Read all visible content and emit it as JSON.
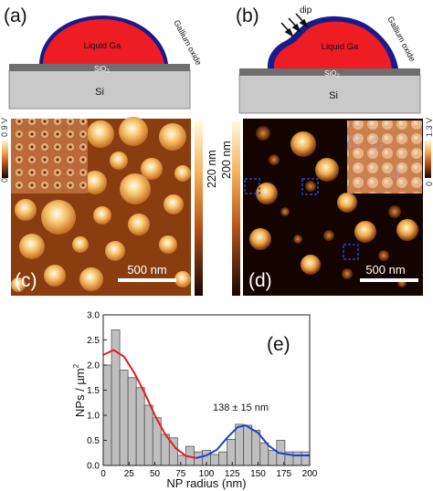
{
  "panel_a": {
    "letter": "(a)",
    "layers": {
      "liquid": "Liquid Ga",
      "oxide": "Gallium oxide",
      "sio2": "SiO",
      "sio2_sub": "2",
      "si": "Si"
    }
  },
  "panel_b": {
    "letter": "(b)",
    "dip": "dip",
    "layers": {
      "liquid": "Liquid Ga",
      "oxide": "Gallium oxide",
      "sio2": "SiO",
      "sio2_sub": "2",
      "si": "Si"
    }
  },
  "panel_c": {
    "letter": "(c)",
    "scale_bar": "500 nm",
    "height_bar": "220 nm",
    "inset_bar_top": "0.9 V",
    "inset_bar_bottom": "0"
  },
  "panel_d": {
    "letter": "(d)",
    "scale_bar": "500 nm",
    "height_bar": "200 nm",
    "inset_bar_top": "1.3 V",
    "inset_bar_bottom": "0"
  },
  "panel_e": {
    "letter": "(e)",
    "annotation": "138 ± 15 nm",
    "xlabel": "NP radius (nm)",
    "ylabel": "NPs / µm",
    "ylabel_sup": "2",
    "x_ticks": [
      "0",
      "25",
      "50",
      "75",
      "100",
      "125",
      "150",
      "175",
      "200"
    ],
    "y_ticks": [
      "0.0",
      "0.5",
      "1.0",
      "1.5",
      "2.0",
      "2.5",
      "3.0"
    ]
  },
  "colors": {
    "gallium": "#ee1c23",
    "oxide": "#1a1a8c",
    "fit_red": "#e8191e",
    "fit_blue": "#1e3fd0",
    "bar": "#bfbfbf"
  },
  "chart_data": {
    "type": "bar",
    "xlabel": "NP radius (nm)",
    "ylabel": "NPs / µm²",
    "xlim": [
      0,
      200
    ],
    "ylim": [
      0,
      3.0
    ],
    "bin_width": 8,
    "x": [
      4,
      12,
      20,
      28,
      36,
      44,
      52,
      60,
      68,
      76,
      84,
      92,
      100,
      108,
      116,
      124,
      132,
      140,
      148,
      156,
      164,
      172,
      180,
      188,
      196
    ],
    "values": [
      2.0,
      2.7,
      1.9,
      1.75,
      1.55,
      1.2,
      0.95,
      0.62,
      0.55,
      0.2,
      0.38,
      0.27,
      0.3,
      0.22,
      0.27,
      0.52,
      0.82,
      0.8,
      0.7,
      0.45,
      0.3,
      0.5,
      0.27,
      0.27,
      0.27
    ],
    "series": [
      {
        "name": "fit_low",
        "x": [
          0,
          10,
          20,
          30,
          40,
          50,
          60,
          70,
          80,
          90
        ],
        "values": [
          2.2,
          2.3,
          2.17,
          1.85,
          1.45,
          1.0,
          0.62,
          0.35,
          0.19,
          0.15
        ]
      },
      {
        "name": "fit_peak",
        "x": [
          90,
          100,
          110,
          120,
          130,
          138,
          150,
          160,
          170,
          185,
          200
        ],
        "values": [
          0.15,
          0.2,
          0.31,
          0.55,
          0.76,
          0.8,
          0.65,
          0.4,
          0.25,
          0.2,
          0.2
        ]
      }
    ],
    "annotations": [
      "138 ± 15 nm"
    ]
  }
}
